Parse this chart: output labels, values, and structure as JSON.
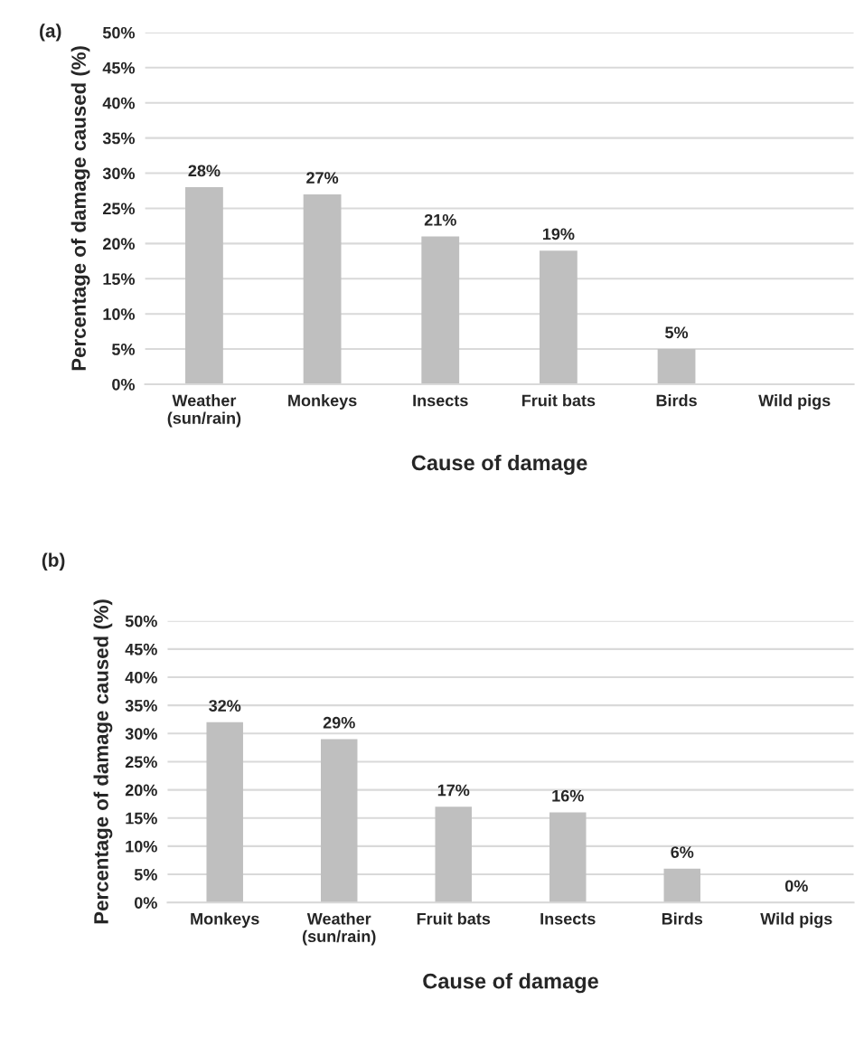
{
  "chart_data": [
    {
      "type": "bar",
      "title": "(a)",
      "xlabel": "Cause of damage",
      "ylabel": "Percentage of damage caused (%)",
      "categories": [
        "Weather\n(sun/rain)",
        "Monkeys",
        "Insects",
        "Fruit bats",
        "Birds",
        "Wild pigs"
      ],
      "values": [
        28,
        27,
        21,
        19,
        5,
        0
      ],
      "color": "#bfbfbf",
      "value_labels": [
        "28%",
        "27%",
        "21%",
        "19%",
        "5%",
        null
      ],
      "ylim": [
        0,
        50
      ],
      "yticks": [
        {
          "value": 0,
          "label": "0%"
        },
        {
          "value": 5,
          "label": "5%"
        },
        {
          "value": 10,
          "label": "10%"
        },
        {
          "value": 15,
          "label": "15%"
        },
        {
          "value": 20,
          "label": "20%"
        },
        {
          "value": 25,
          "label": "25%"
        },
        {
          "value": 30,
          "label": "30%"
        },
        {
          "value": 35,
          "label": "35%"
        },
        {
          "value": 40,
          "label": "40%"
        },
        {
          "value": 45,
          "label": "45%"
        },
        {
          "value": 50,
          "label": "50%"
        }
      ],
      "grid": "y",
      "legend": false
    },
    {
      "type": "bar",
      "title": "(b)",
      "xlabel": "Cause of damage",
      "ylabel": "Percentage of damage caused (%)",
      "categories": [
        "Monkeys",
        "Weather\n(sun/rain)",
        "Fruit bats",
        "Insects",
        "Birds",
        "Wild pigs"
      ],
      "values": [
        32,
        29,
        17,
        16,
        6,
        0
      ],
      "color": "#bfbfbf",
      "value_labels": [
        "32%",
        "29%",
        "17%",
        "16%",
        "6%",
        "0%"
      ],
      "ylim": [
        0,
        50
      ],
      "yticks": [
        {
          "value": 0,
          "label": "0%"
        },
        {
          "value": 5,
          "label": "5%"
        },
        {
          "value": 10,
          "label": "10%"
        },
        {
          "value": 15,
          "label": "15%"
        },
        {
          "value": 20,
          "label": "20%"
        },
        {
          "value": 25,
          "label": "25%"
        },
        {
          "value": 30,
          "label": "30%"
        },
        {
          "value": 35,
          "label": "35%"
        },
        {
          "value": 40,
          "label": "40%"
        },
        {
          "value": 45,
          "label": "45%"
        },
        {
          "value": 50,
          "label": "50%"
        }
      ],
      "grid": "y",
      "legend": false
    }
  ]
}
